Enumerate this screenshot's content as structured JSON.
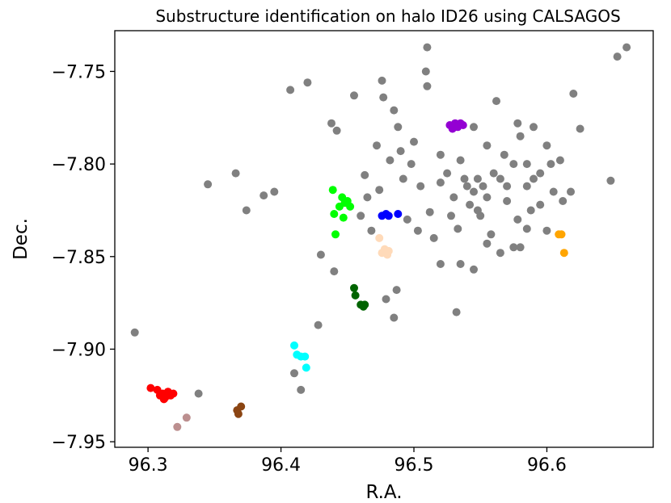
{
  "chart_data": {
    "type": "scatter",
    "title": "Substructure identification on halo ID26 using CALSAGOS",
    "xlabel": "R.A.",
    "ylabel": "Dec.",
    "xlim": [
      96.275,
      96.68
    ],
    "ylim": [
      -7.953,
      -7.728
    ],
    "xticks": [
      96.3,
      96.4,
      96.5,
      96.6
    ],
    "yticks": [
      -7.75,
      -7.8,
      -7.85,
      -7.9,
      -7.95
    ],
    "xtick_labels": [
      "96.3",
      "96.4",
      "96.5",
      "96.6"
    ],
    "ytick_labels": [
      "−7.75",
      "−7.80",
      "−7.85",
      "−7.90",
      "−7.95"
    ],
    "grid": false,
    "legend": "none",
    "series": [
      {
        "color": "#808080",
        "points": [
          [
            96.29,
            -7.891
          ],
          [
            96.338,
            -7.924
          ],
          [
            96.345,
            -7.811
          ],
          [
            96.366,
            -7.805
          ],
          [
            96.374,
            -7.825
          ],
          [
            96.387,
            -7.817
          ],
          [
            96.395,
            -7.815
          ],
          [
            96.407,
            -7.76
          ],
          [
            96.42,
            -7.756
          ],
          [
            96.41,
            -7.913
          ],
          [
            96.415,
            -7.922
          ],
          [
            96.428,
            -7.887
          ],
          [
            96.43,
            -7.849
          ],
          [
            96.44,
            -7.858
          ],
          [
            96.438,
            -7.778
          ],
          [
            96.442,
            -7.782
          ],
          [
            96.455,
            -7.763
          ],
          [
            96.463,
            -7.806
          ],
          [
            96.465,
            -7.818
          ],
          [
            96.46,
            -7.828
          ],
          [
            96.468,
            -7.836
          ],
          [
            96.474,
            -7.814
          ],
          [
            96.472,
            -7.79
          ],
          [
            96.476,
            -7.755
          ],
          [
            96.477,
            -7.764
          ],
          [
            96.485,
            -7.771
          ],
          [
            96.488,
            -7.78
          ],
          [
            96.479,
            -7.873
          ],
          [
            96.487,
            -7.868
          ],
          [
            96.485,
            -7.883
          ],
          [
            96.509,
            -7.75
          ],
          [
            96.51,
            -7.737
          ],
          [
            96.51,
            -7.758
          ],
          [
            96.52,
            -7.81
          ],
          [
            96.525,
            -7.805
          ],
          [
            96.53,
            -7.818
          ],
          [
            96.528,
            -7.828
          ],
          [
            96.533,
            -7.835
          ],
          [
            96.535,
            -7.798
          ],
          [
            96.54,
            -7.812
          ],
          [
            96.542,
            -7.822
          ],
          [
            96.548,
            -7.808
          ],
          [
            96.55,
            -7.828
          ],
          [
            96.555,
            -7.818
          ],
          [
            96.558,
            -7.838
          ],
          [
            96.562,
            -7.766
          ],
          [
            96.565,
            -7.808
          ],
          [
            96.57,
            -7.82
          ],
          [
            96.575,
            -7.8
          ],
          [
            96.578,
            -7.83
          ],
          [
            96.58,
            -7.845
          ],
          [
            96.585,
            -7.812
          ],
          [
            96.59,
            -7.808
          ],
          [
            96.595,
            -7.822
          ],
          [
            96.6,
            -7.836
          ],
          [
            96.605,
            -7.815
          ],
          [
            96.61,
            -7.798
          ],
          [
            96.618,
            -7.815
          ],
          [
            96.62,
            -7.762
          ],
          [
            96.625,
            -7.781
          ],
          [
            96.648,
            -7.809
          ],
          [
            96.653,
            -7.742
          ],
          [
            96.66,
            -7.737
          ],
          [
            96.532,
            -7.88
          ],
          [
            96.52,
            -7.854
          ],
          [
            96.535,
            -7.854
          ],
          [
            96.545,
            -7.857
          ],
          [
            96.555,
            -7.843
          ],
          [
            96.565,
            -7.848
          ],
          [
            96.5,
            -7.788
          ],
          [
            96.498,
            -7.8
          ],
          [
            96.505,
            -7.812
          ],
          [
            96.512,
            -7.826
          ],
          [
            96.515,
            -7.84
          ],
          [
            96.52,
            -7.795
          ],
          [
            96.545,
            -7.78
          ],
          [
            96.555,
            -7.79
          ],
          [
            96.568,
            -7.795
          ],
          [
            96.58,
            -7.785
          ],
          [
            96.59,
            -7.78
          ],
          [
            96.6,
            -7.79
          ],
          [
            96.612,
            -7.82
          ],
          [
            96.575,
            -7.845
          ],
          [
            96.585,
            -7.835
          ],
          [
            96.56,
            -7.805
          ],
          [
            96.552,
            -7.812
          ],
          [
            96.545,
            -7.815
          ],
          [
            96.538,
            -7.808
          ],
          [
            96.548,
            -7.825
          ],
          [
            96.57,
            -7.812
          ],
          [
            96.588,
            -7.825
          ],
          [
            96.595,
            -7.805
          ],
          [
            96.603,
            -7.8
          ],
          [
            96.49,
            -7.793
          ],
          [
            96.482,
            -7.798
          ],
          [
            96.492,
            -7.808
          ],
          [
            96.495,
            -7.83
          ],
          [
            96.503,
            -7.836
          ],
          [
            96.578,
            -7.778
          ],
          [
            96.585,
            -7.8
          ]
        ]
      },
      {
        "color": "#ff0000",
        "points": [
          [
            96.302,
            -7.921
          ],
          [
            96.307,
            -7.922
          ],
          [
            96.309,
            -7.925
          ],
          [
            96.311,
            -7.924
          ],
          [
            96.313,
            -7.926
          ],
          [
            96.315,
            -7.923
          ],
          [
            96.317,
            -7.925
          ],
          [
            96.319,
            -7.924
          ],
          [
            96.312,
            -7.927
          ]
        ]
      },
      {
        "color": "#bc8f8f",
        "points": [
          [
            96.322,
            -7.942
          ],
          [
            96.329,
            -7.937
          ]
        ]
      },
      {
        "color": "#8b4513",
        "points": [
          [
            96.367,
            -7.933
          ],
          [
            96.368,
            -7.935
          ],
          [
            96.37,
            -7.931
          ]
        ]
      },
      {
        "color": "#00ffff",
        "points": [
          [
            96.41,
            -7.898
          ],
          [
            96.412,
            -7.903
          ],
          [
            96.415,
            -7.904
          ],
          [
            96.418,
            -7.904
          ],
          [
            96.419,
            -7.91
          ]
        ]
      },
      {
        "color": "#006400",
        "points": [
          [
            96.455,
            -7.867
          ],
          [
            96.456,
            -7.871
          ],
          [
            96.46,
            -7.876
          ],
          [
            96.462,
            -7.877
          ],
          [
            96.463,
            -7.876
          ]
        ]
      },
      {
        "color": "#00ff00",
        "points": [
          [
            96.439,
            -7.814
          ],
          [
            96.44,
            -7.827
          ],
          [
            96.441,
            -7.838
          ],
          [
            96.444,
            -7.823
          ],
          [
            96.446,
            -7.818
          ],
          [
            96.447,
            -7.829
          ],
          [
            96.448,
            -7.821
          ],
          [
            96.45,
            -7.82
          ],
          [
            96.452,
            -7.823
          ]
        ]
      },
      {
        "color": "#0000ff",
        "points": [
          [
            96.476,
            -7.828
          ],
          [
            96.479,
            -7.827
          ],
          [
            96.481,
            -7.828
          ],
          [
            96.488,
            -7.827
          ]
        ]
      },
      {
        "color": "#ffdab9",
        "points": [
          [
            96.474,
            -7.84
          ],
          [
            96.476,
            -7.848
          ],
          [
            96.478,
            -7.846
          ],
          [
            96.48,
            -7.849
          ],
          [
            96.481,
            -7.847
          ]
        ]
      },
      {
        "color": "#9400d3",
        "points": [
          [
            96.527,
            -7.779
          ],
          [
            96.529,
            -7.781
          ],
          [
            96.531,
            -7.778
          ],
          [
            96.533,
            -7.78
          ],
          [
            96.535,
            -7.778
          ],
          [
            96.537,
            -7.779
          ]
        ]
      },
      {
        "color": "#ffa500",
        "points": [
          [
            96.609,
            -7.838
          ],
          [
            96.611,
            -7.838
          ],
          [
            96.613,
            -7.848
          ]
        ]
      }
    ]
  }
}
